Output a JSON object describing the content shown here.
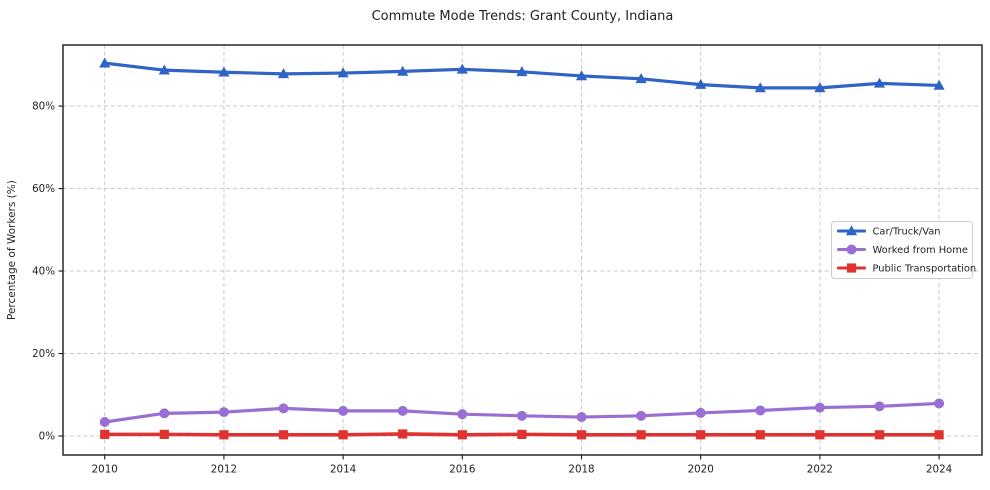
{
  "figure": {
    "title": "Commute Mode Trends: Grant County, Indiana"
  },
  "chart_data": {
    "type": "line",
    "title": "Commute Mode Trends: Grant County, Indiana",
    "xlabel": "",
    "ylabel": "Percentage of Workers (%)",
    "x": [
      2010,
      2011,
      2012,
      2013,
      2014,
      2015,
      2016,
      2017,
      2018,
      2019,
      2020,
      2021,
      2022,
      2023,
      2024
    ],
    "x_ticks": [
      2010,
      2012,
      2014,
      2016,
      2018,
      2020,
      2022,
      2024
    ],
    "x_tick_labels": [
      "2010",
      "2012",
      "2014",
      "2016",
      "2018",
      "2020",
      "2022",
      "2024"
    ],
    "y_ticks": [
      0,
      20,
      40,
      60,
      80
    ],
    "y_tick_labels": [
      "0%",
      "20%",
      "40%",
      "60%",
      "80%"
    ],
    "xlim": [
      2009.3,
      2024.72
    ],
    "ylim": [
      -4.6,
      94.8
    ],
    "grid": true,
    "grid_style": "dashed",
    "legend_position": "center right",
    "series": [
      {
        "name": "Car/Truck/Van",
        "color": "#2f63c6",
        "marker": "triangle",
        "values": [
          90.4,
          88.7,
          88.2,
          87.8,
          88.0,
          88.4,
          88.9,
          88.3,
          87.3,
          86.6,
          85.2,
          84.4,
          84.4,
          85.5,
          85.0
        ]
      },
      {
        "name": "Worked from Home",
        "color": "#9a6fd4",
        "marker": "circle",
        "values": [
          3.4,
          5.5,
          5.8,
          6.7,
          6.1,
          6.1,
          5.3,
          4.9,
          4.6,
          4.9,
          5.6,
          6.2,
          6.9,
          7.2,
          7.9
        ]
      },
      {
        "name": "Public Transportation",
        "color": "#e03231",
        "marker": "square",
        "values": [
          0.4,
          0.4,
          0.3,
          0.3,
          0.3,
          0.5,
          0.3,
          0.4,
          0.3,
          0.3,
          0.3,
          0.3,
          0.3,
          0.3,
          0.3
        ]
      }
    ]
  },
  "colors": {
    "grid": "#c9c9c9",
    "spine": "#1a1a1a",
    "tick_text": "#1f1f1f",
    "legend_border": "#cccccc",
    "legend_bg": "#ffffff"
  }
}
